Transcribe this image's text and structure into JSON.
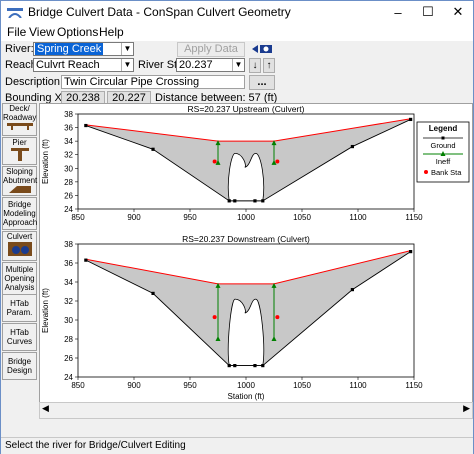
{
  "window": {
    "title": "Bridge Culvert Data - ConSpan Culvert Geometry"
  },
  "menu": [
    "File",
    "View",
    "Options",
    "Help"
  ],
  "form": {
    "river_label": "River:",
    "river_value": "Spring Creek",
    "apply_label": "Apply Data",
    "reach_label": "Reach:",
    "reach_value": "Culvrt Reach",
    "station_label": "River Sta.:",
    "station_value": "20.237",
    "description_label": "Description",
    "description_value": "Twin Circular Pipe Crossing",
    "bounding_label": "Bounding XS's:",
    "bounding_us": "20.238",
    "bounding_ds": "20.227",
    "distance_text": "Distance between: 57 (ft)"
  },
  "tools": [
    {
      "name": "deck-roadway",
      "label": "Deck/\nRoadway"
    },
    {
      "name": "pier",
      "label": "Pier"
    },
    {
      "name": "sloping-abutment",
      "label": "Sloping\nAbutment"
    },
    {
      "name": "bridge-modeling-approach",
      "label": "Bridge\nModeling\nApproach"
    },
    {
      "name": "culvert",
      "label": "Culvert"
    },
    {
      "name": "multiple-opening-analysis",
      "label": "Multiple\nOpening\nAnalysis"
    },
    {
      "name": "htab-param",
      "label": "HTab\nParam."
    },
    {
      "name": "htab-curves",
      "label": "HTab\nCurves"
    },
    {
      "name": "bridge-design",
      "label": "Bridge\nDesign"
    }
  ],
  "status": "Select the river for Bridge/Culvert Editing",
  "colors": {
    "ground": "#000000",
    "deck": "#ff0000",
    "ineff": "#008000",
    "fill": "#c8c8c8"
  },
  "chart_data": [
    {
      "type": "line",
      "title": "RS=20.237   Upstream  (Culvert)",
      "xlabel": "",
      "ylabel": "Elevation (ft)",
      "xlim": [
        850,
        1150
      ],
      "ylim": [
        24,
        38
      ],
      "xticks": [
        850,
        900,
        950,
        1000,
        1050,
        1100,
        1150
      ],
      "yticks": [
        24,
        26,
        28,
        30,
        32,
        34,
        36,
        38
      ],
      "ground": {
        "x": [
          857,
          917,
          985,
          990,
          1008,
          1015,
          1095,
          1147
        ],
        "y": [
          36.3,
          32.8,
          25.2,
          25.2,
          25.2,
          25.2,
          33.2,
          37.2
        ]
      },
      "deck_top": {
        "x": [
          857,
          975,
          1025,
          1147
        ],
        "y": [
          36.4,
          34.0,
          34.0,
          37.3
        ]
      },
      "ineff": [
        {
          "x": 975,
          "y": 34.0,
          "base": 30.8
        },
        {
          "x": 1025,
          "y": 34.0,
          "base": 30.8
        }
      ],
      "bank_sta": [
        {
          "x": 972,
          "y": 31.0
        },
        {
          "x": 1028,
          "y": 31.0
        }
      ],
      "legend": {
        "title": "Legend",
        "items": [
          "Ground",
          "Ineff",
          "Bank Sta"
        ],
        "position": "top-right"
      }
    },
    {
      "type": "line",
      "title": "RS=20.237   Downstream  (Culvert)",
      "xlabel": "Station (ft)",
      "ylabel": "Elevation (ft)",
      "xlim": [
        850,
        1150
      ],
      "ylim": [
        24,
        38
      ],
      "xticks": [
        850,
        900,
        950,
        1000,
        1050,
        1100,
        1150
      ],
      "yticks": [
        24,
        26,
        28,
        30,
        32,
        34,
        36,
        38
      ],
      "ground": {
        "x": [
          857,
          917,
          985,
          990,
          1008,
          1015,
          1095,
          1147
        ],
        "y": [
          36.3,
          32.8,
          25.2,
          25.2,
          25.2,
          25.2,
          33.2,
          37.2
        ]
      },
      "deck_top": {
        "x": [
          857,
          975,
          1025,
          1147
        ],
        "y": [
          36.4,
          33.8,
          33.8,
          37.3
        ]
      },
      "ineff": [
        {
          "x": 975,
          "y": 33.8,
          "base": 28.0
        },
        {
          "x": 1025,
          "y": 33.8,
          "base": 28.0
        }
      ],
      "bank_sta": [
        {
          "x": 972,
          "y": 30.3
        },
        {
          "x": 1028,
          "y": 30.3
        }
      ]
    }
  ]
}
